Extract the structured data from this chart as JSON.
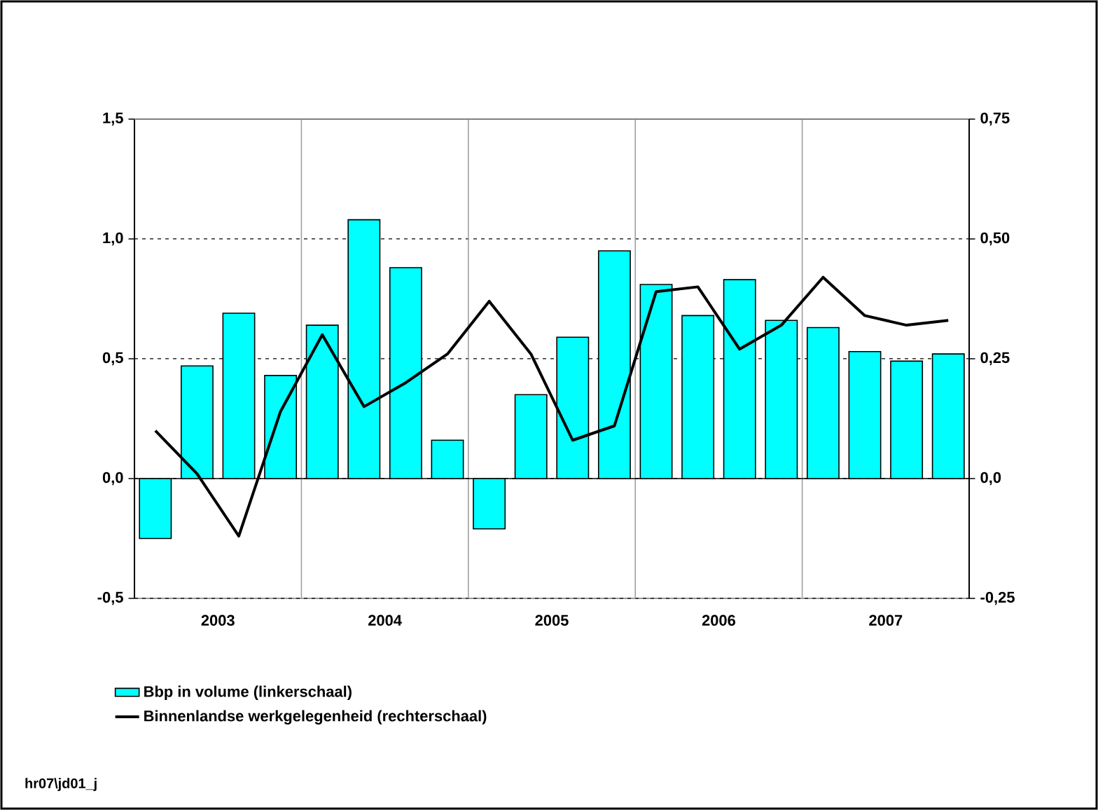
{
  "chart_data": {
    "type": "bar",
    "x": [
      2003.125,
      2003.375,
      2003.625,
      2003.875,
      2004.125,
      2004.375,
      2004.625,
      2004.875,
      2005.125,
      2005.375,
      2005.625,
      2005.875,
      2006.125,
      2006.375,
      2006.625,
      2006.875,
      2007.125,
      2007.375,
      2007.625,
      2007.875
    ],
    "series": [
      {
        "name": "Bbp in volume (linkerschaal)",
        "color": "#00ffff",
        "values": [
          -0.25,
          0.47,
          0.69,
          0.43,
          0.64,
          1.08,
          0.88,
          0.16,
          -0.21,
          0.35,
          0.59,
          0.95,
          0.81,
          0.68,
          0.83,
          0.66,
          0.63,
          0.53,
          0.49,
          0.52
        ]
      },
      {
        "name": "Binnenlandse werkgelegenheid (rechterschaal)",
        "type": "line",
        "axis": "y2",
        "color": "#000000",
        "values": [
          0.1,
          0.01,
          -0.12,
          0.14,
          0.3,
          0.15,
          0.2,
          0.26,
          0.37,
          0.26,
          0.08,
          0.11,
          0.39,
          0.4,
          0.27,
          0.32,
          0.42,
          0.34,
          0.32,
          0.33
        ]
      }
    ],
    "xlim": [
      2003,
      2008
    ],
    "xticks": [
      {
        "value": 2003.5,
        "label": "2003"
      },
      {
        "value": 2004.5,
        "label": "2004"
      },
      {
        "value": 2005.5,
        "label": "2005"
      },
      {
        "value": 2006.5,
        "label": "2006"
      },
      {
        "value": 2007.5,
        "label": "2007"
      }
    ],
    "ylim": [
      -0.5,
      1.5
    ],
    "yticks": [
      {
        "value": -0.5,
        "label": "-0,5"
      },
      {
        "value": 0,
        "label": "0,0"
      },
      {
        "value": 0.5,
        "label": "0,5"
      },
      {
        "value": 1.0,
        "label": "1,0"
      },
      {
        "value": 1.5,
        "label": "1,5"
      }
    ],
    "y2lim": [
      -0.25,
      0.75
    ],
    "y2ticks": [
      {
        "value": -0.25,
        "label": "-0,25"
      },
      {
        "value": 0,
        "label": "0,0"
      },
      {
        "value": 0.25,
        "label": "0,25"
      },
      {
        "value": 0.5,
        "label": "0,50"
      },
      {
        "value": 0.75,
        "label": "0,75"
      }
    ],
    "grid": "y",
    "ref_lines": [
      {
        "axis": "x",
        "value": 2004,
        "color": "#a0a0a0"
      },
      {
        "axis": "x",
        "value": 2005,
        "color": "#a0a0a0"
      },
      {
        "axis": "x",
        "value": 2006,
        "color": "#a0a0a0"
      },
      {
        "axis": "x",
        "value": 2007,
        "color": "#a0a0a0"
      },
      {
        "axis": "y",
        "value": 0,
        "color": "#000000"
      }
    ],
    "legend": "bottom left",
    "annotations": [
      "hr07\\jd01_j"
    ]
  }
}
